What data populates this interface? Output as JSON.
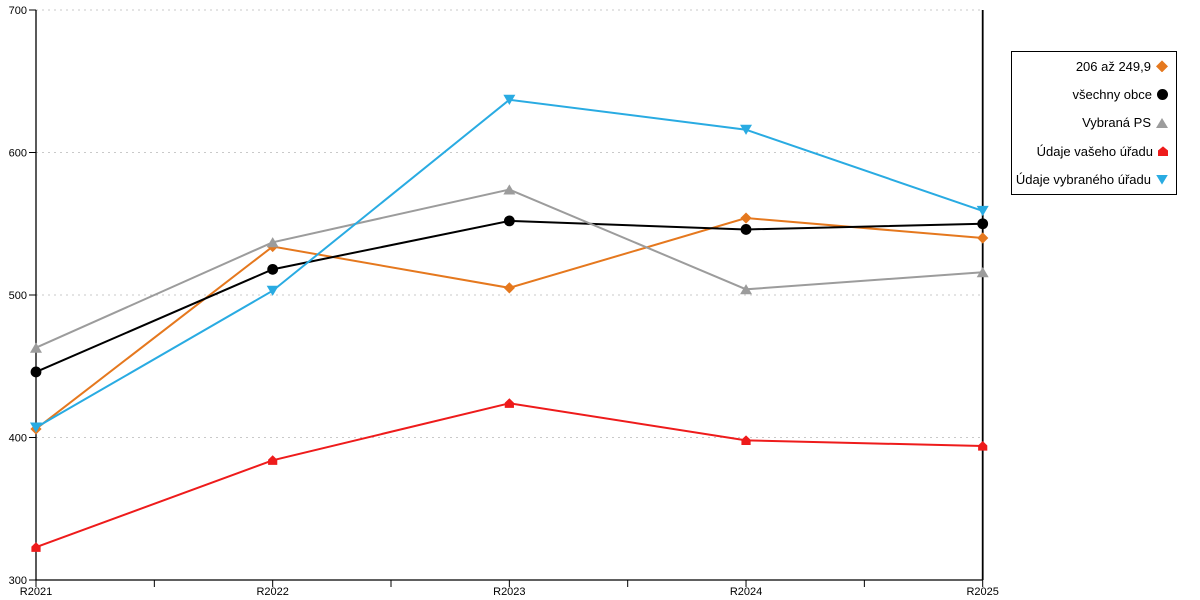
{
  "page": {
    "background": "#ffffff"
  },
  "chart_data": {
    "type": "line",
    "title": "",
    "xlabel": "",
    "ylabel": "",
    "categories": [
      "R2021",
      "R2022",
      "R2023",
      "R2024",
      "R2025"
    ],
    "series": [
      {
        "name": "206 až 249,9",
        "marker": "diamond",
        "color": "#E5781E",
        "values": [
          406,
          534,
          505,
          554,
          540
        ]
      },
      {
        "name": "všechny obce",
        "marker": "circle",
        "color": "#000000",
        "values": [
          446,
          518,
          552,
          546,
          550
        ]
      },
      {
        "name": "Vybraná PS",
        "marker": "triangle-up",
        "color": "#9C9C9C",
        "values": [
          463,
          537,
          574,
          504,
          516
        ]
      },
      {
        "name": "Údaje vašeho úřadu",
        "marker": "pentagon-up",
        "color": "#EE1B1B",
        "values": [
          323,
          384,
          424,
          398,
          394
        ]
      },
      {
        "name": "Údaje vybraného úřadu",
        "marker": "triangle-down",
        "color": "#29ABE2",
        "values": [
          407,
          503,
          637,
          616,
          559
        ]
      }
    ],
    "y_axis": {
      "min": 300,
      "max": 700,
      "tick_step": 100,
      "tick_labels": [
        "300",
        "400",
        "500",
        "600",
        "700"
      ]
    },
    "x_axis": {
      "tick_labels": [
        "R2021",
        "R2022",
        "R2023",
        "R2024",
        "R2025"
      ],
      "minor_ticks_between_labels": true
    },
    "grid": {
      "horizontal": "dotted",
      "color": "#C9C9C9",
      "vertical": "none"
    },
    "axis_color": "#000000",
    "legend_position": "right"
  }
}
